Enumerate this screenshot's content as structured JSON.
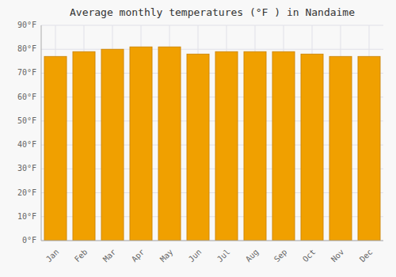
{
  "chart_data": {
    "type": "bar",
    "title": "Average monthly temperatures (°F ) in Nandaime",
    "categories": [
      "Jan",
      "Feb",
      "Mar",
      "Apr",
      "May",
      "Jun",
      "Jul",
      "Aug",
      "Sep",
      "Oct",
      "Nov",
      "Dec"
    ],
    "values": [
      77,
      79,
      80,
      81,
      81,
      78,
      79,
      79,
      79,
      78,
      77,
      77
    ],
    "color": "#F0A000",
    "ylim": [
      0,
      90
    ],
    "yticks": [
      {
        "value": 0,
        "label": "0°F"
      },
      {
        "value": 10,
        "label": "10°F"
      },
      {
        "value": 20,
        "label": "20°F"
      },
      {
        "value": 30,
        "label": "30°F"
      },
      {
        "value": 40,
        "label": "40°F"
      },
      {
        "value": 50,
        "label": "50°F"
      },
      {
        "value": 60,
        "label": "60°F"
      },
      {
        "value": 70,
        "label": "70°F"
      },
      {
        "value": 80,
        "label": "80°F"
      },
      {
        "value": 90,
        "label": "90°F"
      }
    ],
    "grid": true
  }
}
